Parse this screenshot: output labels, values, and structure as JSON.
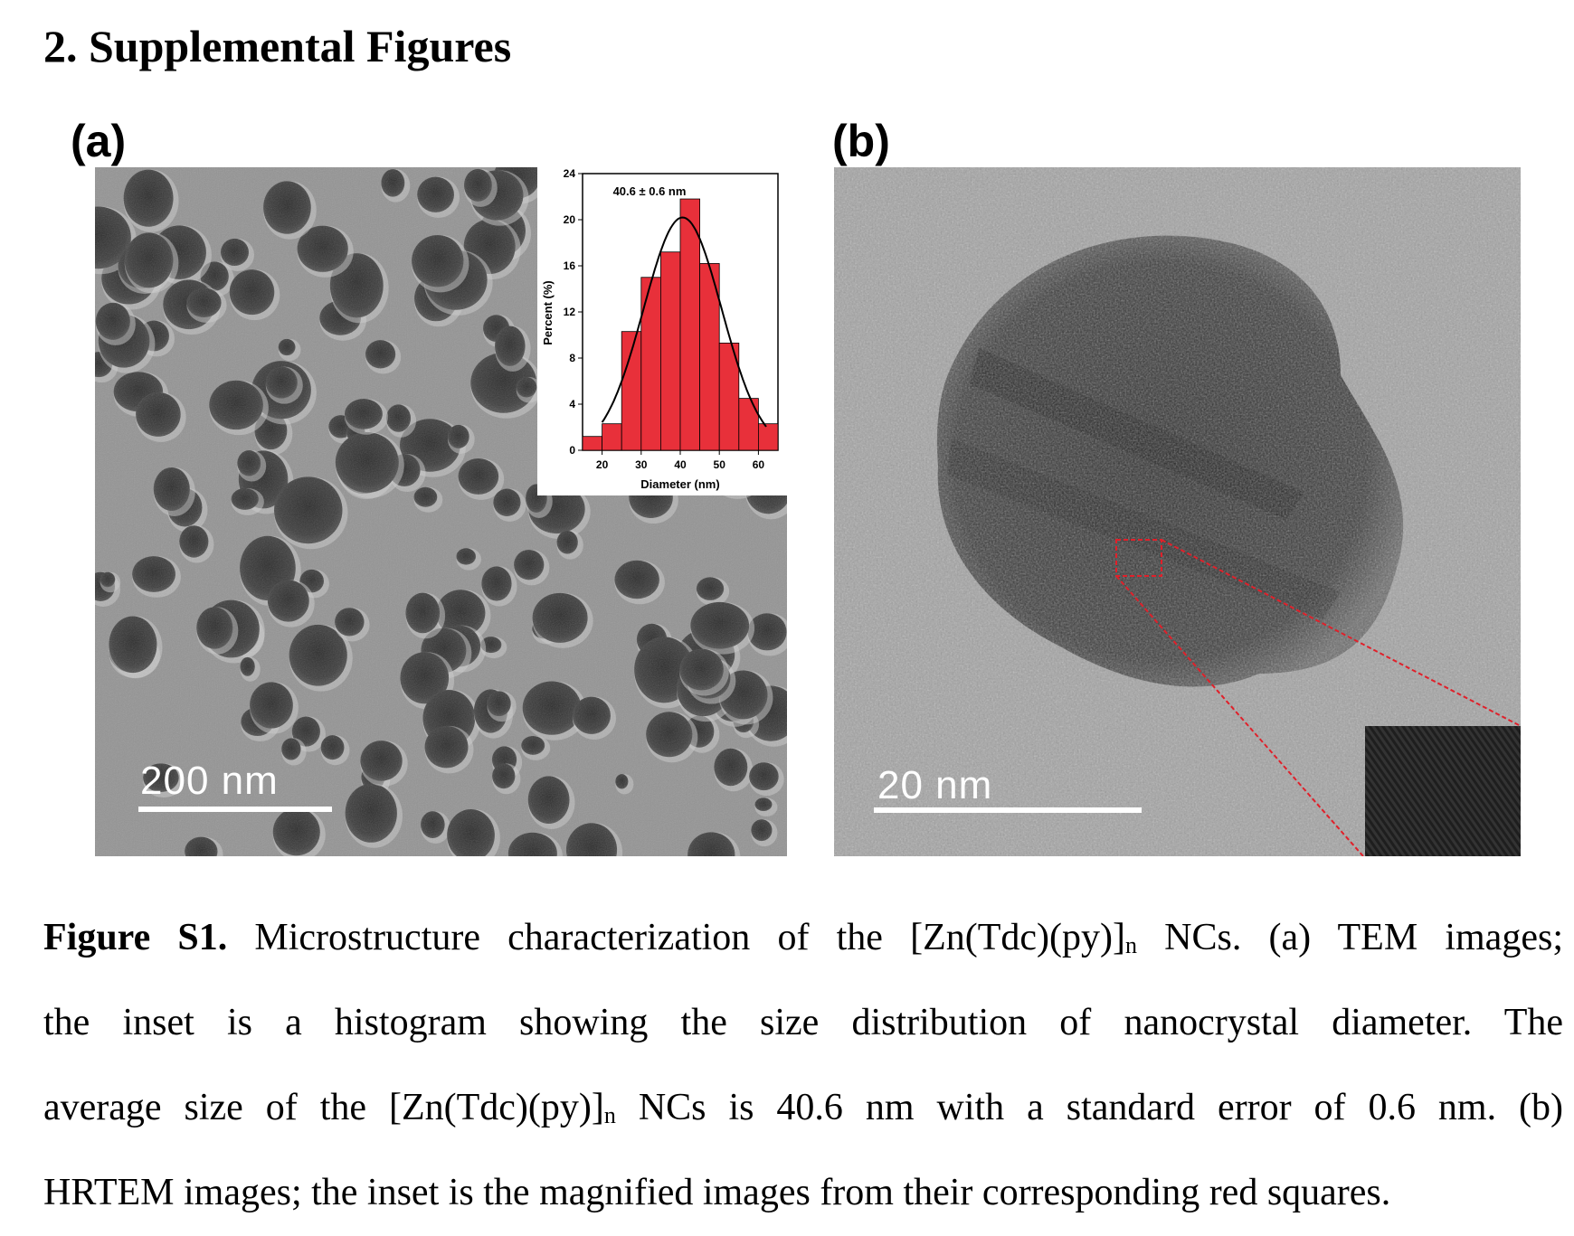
{
  "section_title": "2. Supplemental Figures",
  "panels": {
    "a": {
      "label": "(a)",
      "scale_bar": "200 nm"
    },
    "b": {
      "label": "(b)",
      "scale_bar": "20 nm"
    }
  },
  "chart_data": {
    "type": "bar",
    "title": "40.6 ± 0.6 nm",
    "xlabel": "Diameter (nm)",
    "ylabel": "Percent (%)",
    "x_ticks": [
      20,
      30,
      40,
      50,
      60
    ],
    "y_ticks": [
      0,
      4,
      8,
      12,
      16,
      20,
      24
    ],
    "xlim": [
      15,
      65
    ],
    "ylim": [
      0,
      24
    ],
    "bin_centers": [
      17.5,
      22.5,
      27.5,
      32.5,
      37.5,
      42.5,
      47.5,
      52.5,
      57.5,
      62.5
    ],
    "values": [
      1.2,
      2.3,
      10.3,
      15.0,
      17.2,
      21.8,
      16.2,
      9.3,
      4.5,
      2.3
    ],
    "fit": {
      "type": "gaussian",
      "mean": 40.6,
      "peak": 20.2,
      "sigma": 10
    },
    "bar_color": "#e8303a",
    "fit_color": "#000000"
  },
  "caption": {
    "label": "Figure S1.",
    "line1_text": "Microstructure characterization of the [Zn(Tdc)(py)]",
    "sub_n": "n",
    "line1_tail": "NCs. (a) TEM images;",
    "line2": "the inset is a histogram showing the size distribution of nanocrystal diameter. The",
    "line3_head": "average size of the [Zn(Tdc)(py)]",
    "line3_tail": "NCs is 40.6 nm with a standard error of 0.6 nm. (b)",
    "line4": "HRTEM images; the inset is the magnified images from their corresponding red squares."
  },
  "colors": {
    "highlight_box": "#e0202a"
  }
}
